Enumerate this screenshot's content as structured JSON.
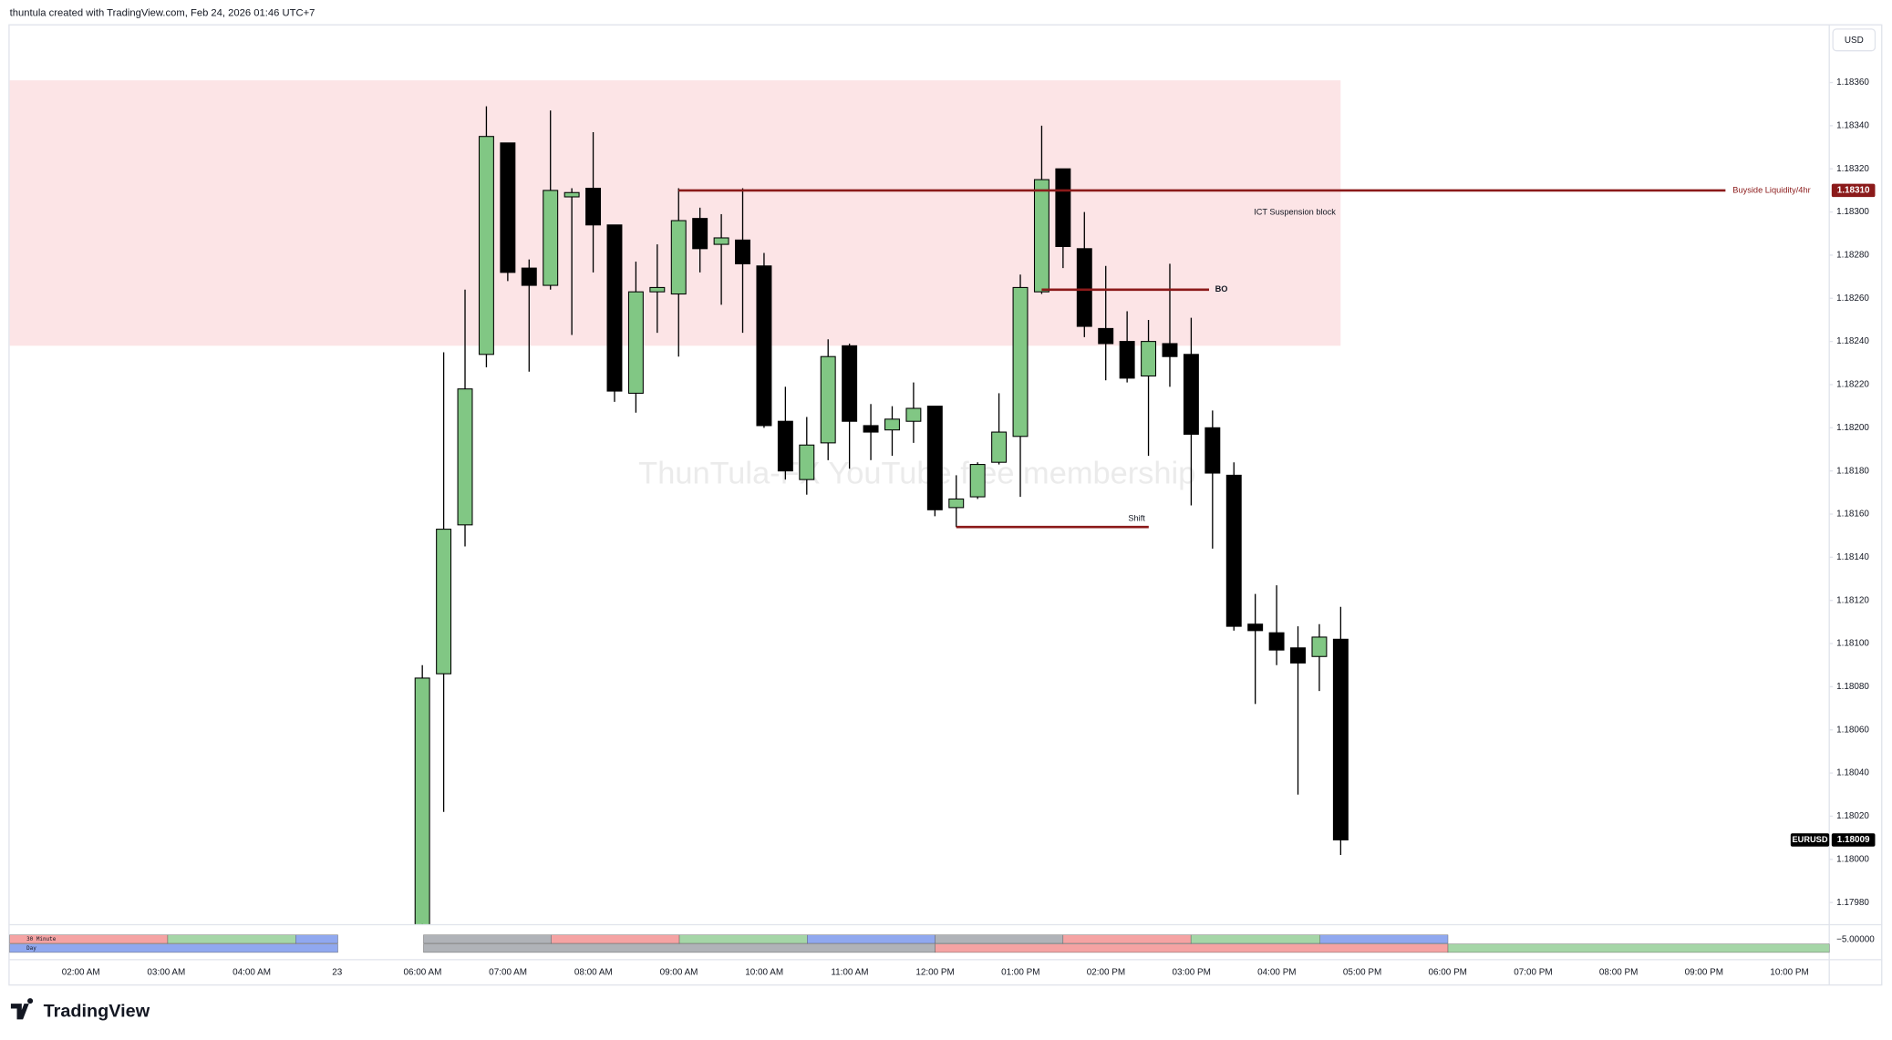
{
  "header": "thuntula created with TradingView.com, Feb 24, 2026 01:46 UTC+7",
  "currency": "USD",
  "watermark": "ThunTula-FX YouTube free membership",
  "footer_logo": "TradingView",
  "chart_data": {
    "type": "candlestick",
    "symbol": "EURUSD",
    "open": [
      1.17968,
      1.18086,
      1.18155,
      1.18234,
      1.18332,
      1.18274,
      1.18266,
      1.18307,
      1.18311,
      1.18294,
      1.18216,
      1.18263,
      1.18262,
      1.18297,
      1.18285,
      1.18287,
      1.18275,
      1.18203,
      1.18176,
      1.18193,
      1.18238,
      1.18201,
      1.18199,
      1.18203,
      1.1821,
      1.18163,
      1.18168,
      1.18184,
      1.18196,
      1.18263,
      1.1832,
      1.18283,
      1.18246,
      1.1824,
      1.18224,
      1.18239,
      1.18234,
      1.182,
      1.18178,
      1.18109,
      1.18105,
      1.18098,
      1.18094,
      1.18102
    ],
    "high": [
      1.1809,
      1.18235,
      1.18264,
      1.18349,
      1.18332,
      1.18278,
      1.18347,
      1.18311,
      1.18337,
      1.18294,
      1.18277,
      1.18285,
      1.18311,
      1.18302,
      1.18299,
      1.18311,
      1.18281,
      1.18219,
      1.18205,
      1.18241,
      1.18239,
      1.18211,
      1.1821,
      1.18221,
      1.1821,
      1.18178,
      1.18184,
      1.18216,
      1.18271,
      1.1834,
      1.1832,
      1.183,
      1.18275,
      1.18254,
      1.1825,
      1.18276,
      1.18251,
      1.18208,
      1.18184,
      1.18123,
      1.18127,
      1.18108,
      1.18109,
      1.18117
    ],
    "low": [
      1.17963,
      1.18022,
      1.18145,
      1.18228,
      1.18268,
      1.18226,
      1.18264,
      1.18243,
      1.18272,
      1.18212,
      1.18207,
      1.18244,
      1.18233,
      1.18272,
      1.18257,
      1.18244,
      1.182,
      1.18176,
      1.18169,
      1.18185,
      1.18181,
      1.18185,
      1.18187,
      1.18193,
      1.18159,
      1.18154,
      1.18167,
      1.18183,
      1.18168,
      1.18262,
      1.18274,
      1.18242,
      1.18222,
      1.18221,
      1.18187,
      1.18219,
      1.18164,
      1.18144,
      1.18106,
      1.18072,
      1.1809,
      1.1803,
      1.18078,
      1.18002
    ],
    "close": [
      1.18084,
      1.18153,
      1.18218,
      1.18335,
      1.18272,
      1.18266,
      1.1831,
      1.18309,
      1.18294,
      1.18217,
      1.18263,
      1.18265,
      1.18296,
      1.18283,
      1.18288,
      1.18276,
      1.18201,
      1.1818,
      1.18192,
      1.18233,
      1.18203,
      1.18198,
      1.18204,
      1.18209,
      1.18162,
      1.18167,
      1.18183,
      1.18198,
      1.18265,
      1.18315,
      1.18284,
      1.18247,
      1.18239,
      1.18223,
      1.1824,
      1.18233,
      1.18197,
      1.18179,
      1.18108,
      1.18106,
      1.18097,
      1.18091,
      1.18103,
      1.18009
    ],
    "up_color": "#81c784",
    "down_color": "#000000",
    "ylim": [
      1.1797,
      1.18387
    ],
    "yticks": [
      {
        "value": 1.1836,
        "label": "1.18360"
      },
      {
        "value": 1.1834,
        "label": "1.18340"
      },
      {
        "value": 1.1832,
        "label": "1.18320"
      },
      {
        "value": 1.183,
        "label": "1.18300"
      },
      {
        "value": 1.1828,
        "label": "1.18280"
      },
      {
        "value": 1.1826,
        "label": "1.18260"
      },
      {
        "value": 1.1824,
        "label": "1.18240"
      },
      {
        "value": 1.1822,
        "label": "1.18220"
      },
      {
        "value": 1.182,
        "label": "1.18200"
      },
      {
        "value": 1.1818,
        "label": "1.18180"
      },
      {
        "value": 1.1816,
        "label": "1.18160"
      },
      {
        "value": 1.1814,
        "label": "1.18140"
      },
      {
        "value": 1.1812,
        "label": "1.18120"
      },
      {
        "value": 1.181,
        "label": "1.18100"
      },
      {
        "value": 1.1808,
        "label": "1.18080"
      },
      {
        "value": 1.1806,
        "label": "1.18060"
      },
      {
        "value": 1.1804,
        "label": "1.18040"
      },
      {
        "value": 1.1802,
        "label": "1.18020"
      },
      {
        "value": 1.18,
        "label": "1.18000"
      },
      {
        "value": 1.1798,
        "label": "1.17980"
      }
    ],
    "x_labels": [
      "02:00 AM",
      "03:00 AM",
      "04:00 AM",
      "23",
      "06:00 AM",
      "07:00 AM",
      "08:00 AM",
      "09:00 AM",
      "10:00 AM",
      "11:00 AM",
      "12:00 PM",
      "01:00 PM",
      "02:00 PM",
      "03:00 PM",
      "04:00 PM",
      "05:00 PM",
      "06:00 PM",
      "07:00 PM",
      "08:00 PM",
      "09:00 PM",
      "10:00 PM"
    ],
    "zone": {
      "name": "ICT Suspension block",
      "top": 1.18361,
      "bottom": 1.18238,
      "color": "#fce4e6"
    },
    "levels": [
      {
        "name": "Buyside Liquidity/4hr",
        "value": 1.1831,
        "label": "1.18310",
        "color": "#8b1a1a"
      },
      {
        "name": "BO",
        "value": 1.18264,
        "color": "#8b1a1a"
      },
      {
        "name": "Shift",
        "value": 1.18154,
        "color": "#8b1a1a"
      }
    ],
    "indicator": {
      "legend": [
        "30 Minute",
        "Day"
      ],
      "label": "−5.00000"
    }
  }
}
